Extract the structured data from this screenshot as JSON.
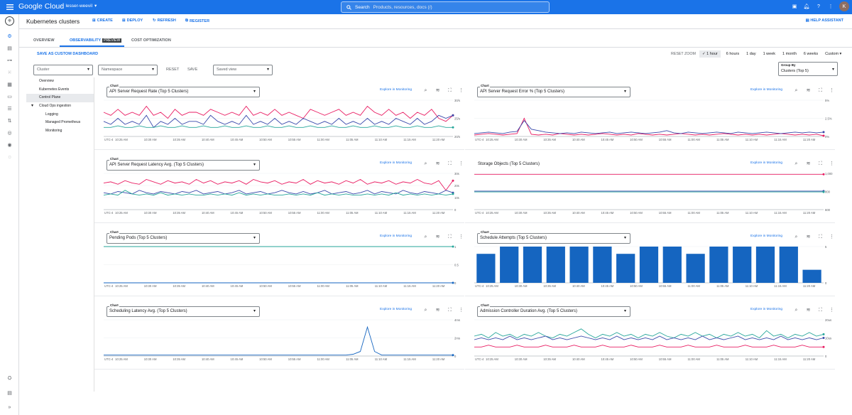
{
  "topbar": {
    "logo": "Google Cloud",
    "project": "lesser-weevil",
    "search_label": "Search",
    "search_placeholder": "Products, resources, docs (/)",
    "avatar": "K"
  },
  "header": {
    "title": "Kubernetes clusters",
    "create": "CREATE",
    "deploy": "DEPLOY",
    "refresh": "REFRESH",
    "register": "REGISTER",
    "help": "HELP ASSISTANT"
  },
  "tabs": {
    "overview": "OVERVIEW",
    "observability": "OBSERVABILITY",
    "preview": "PREVIEW",
    "cost": "COST OPTIMIZATION"
  },
  "toolbar": {
    "save_dashboard": "SAVE AS CUSTOM DASHBOARD",
    "reset_zoom": "RESET ZOOM",
    "times": [
      "1 hour",
      "6 hours",
      "1 day",
      "1 week",
      "1 month",
      "6 weeks",
      "Custom"
    ],
    "selected_time": "1 hour"
  },
  "filters": {
    "cluster": "Cluster",
    "namespace": "Namespace",
    "reset": "RESET",
    "save": "SAVE",
    "saved_view": "Saved view",
    "group_by_label": "Group By",
    "group_by_value": "Clusters (Top 5)"
  },
  "tree": [
    {
      "label": "Overview",
      "level": 1
    },
    {
      "label": "Kubernetes Events",
      "level": 1
    },
    {
      "label": "Control Plane",
      "level": 1,
      "selected": true
    },
    {
      "label": "Cloud Ops ingestion",
      "level": 1,
      "expanded": true
    },
    {
      "label": "Logging",
      "level": 2
    },
    {
      "label": "Managed Prometheus",
      "level": 2
    },
    {
      "label": "Monitoring",
      "level": 2
    }
  ],
  "common": {
    "chart_label": "Chart",
    "explore": "Explore in Monitoring",
    "tz": "UTC-4"
  },
  "x_ticks": [
    "10:25 AM",
    "10:30 AM",
    "10:35 AM",
    "10:40 AM",
    "10:45 AM",
    "10:50 AM",
    "10:55 AM",
    "11:00 AM",
    "11:05 AM",
    "11:10 AM",
    "11:15 AM",
    "11:20 AM"
  ],
  "colors": {
    "primary": "#1a73e8",
    "blue": "#1565c0",
    "teal": "#26a69a",
    "pink": "#e91e63",
    "navy": "#3949ab",
    "bar": "#1565c0"
  },
  "chart_data": [
    {
      "type": "line",
      "title": "API Server Request Rate (Top 5 Clusters)",
      "dropdown": true,
      "y_ticks": [
        "30/s",
        "25/s",
        "20/s"
      ],
      "ylim": [
        19,
        31
      ],
      "series": [
        {
          "color": "#e91e63",
          "values": [
            27,
            26,
            28,
            26,
            27,
            26,
            29,
            26,
            27,
            25,
            28,
            26,
            27,
            27,
            26,
            28,
            27,
            26,
            27,
            26,
            29,
            26,
            27,
            26,
            28,
            26,
            27,
            26,
            25,
            28,
            27,
            26,
            27,
            28,
            26,
            27,
            26,
            29,
            27,
            26,
            28,
            26,
            27,
            25,
            27,
            26,
            28,
            25,
            24,
            26
          ]
        },
        {
          "color": "#3949ab",
          "values": [
            24,
            23,
            25,
            23,
            24,
            23,
            26,
            22,
            24,
            23,
            25,
            23,
            24,
            24,
            23,
            26,
            24,
            23,
            24,
            23,
            26,
            23,
            24,
            23,
            25,
            23,
            24,
            23,
            25,
            24,
            23,
            24,
            23,
            25,
            23,
            24,
            23,
            25,
            23,
            24,
            23,
            25,
            24,
            23,
            25,
            23,
            24,
            26,
            25,
            26
          ]
        },
        {
          "color": "#26a69a",
          "values": [
            22,
            22,
            22.5,
            22,
            22,
            22.5,
            22,
            22,
            22.5,
            22,
            22,
            22.5,
            22,
            22,
            22.5,
            22,
            22,
            22.5,
            22,
            22,
            22.5,
            22,
            22,
            22.5,
            22,
            22,
            22.5,
            22,
            22,
            22.5,
            22,
            22,
            22.5,
            22,
            22,
            22.5,
            22,
            22,
            22.5,
            22,
            22,
            22.5,
            22,
            22,
            22.5,
            22,
            22,
            22.5,
            22,
            22
          ]
        }
      ]
    },
    {
      "type": "line",
      "title": "API Server Request Error % (Top 5 Clusters)",
      "dropdown": true,
      "y_ticks": [
        "5%",
        "2.5%",
        "0%"
      ],
      "ylim": [
        0,
        5
      ],
      "series": [
        {
          "color": "#e91e63",
          "values": [
            0.2,
            0.3,
            0.4,
            0.3,
            0.2,
            0.3,
            0.4,
            2.5,
            0.3,
            0.2,
            0.3,
            0.2,
            0.4,
            0.3,
            0.2,
            0.3,
            0.2,
            0.3,
            0.4,
            0.3,
            0.2,
            0.3,
            0.2,
            0.4,
            0.3,
            0.2,
            0.3,
            0.2,
            0.3,
            0.4,
            0.3,
            0.2,
            0.3,
            0.2,
            0.3,
            0.4,
            0.3,
            0.2,
            0.3,
            0.2,
            0.3,
            0.2,
            0.3,
            0.4,
            0.3,
            0.2,
            0.3,
            0.2,
            0.3,
            0.1
          ]
        },
        {
          "color": "#3949ab",
          "values": [
            0.4,
            0.5,
            0.6,
            0.5,
            0.4,
            0.6,
            0.7,
            2.2,
            1.0,
            0.8,
            0.6,
            0.5,
            0.4,
            0.5,
            0.4,
            0.6,
            0.5,
            0.4,
            0.5,
            0.6,
            0.4,
            0.5,
            0.6,
            0.5,
            0.4,
            0.5,
            0.6,
            0.8,
            0.5,
            0.4,
            0.6,
            0.5,
            0.4,
            0.5,
            0.6,
            0.5,
            0.4,
            0.6,
            0.5,
            0.4,
            0.5,
            0.6,
            0.5,
            0.4,
            0.5,
            0.6,
            0.5,
            0.6,
            0.5,
            0.6
          ]
        }
      ]
    },
    {
      "type": "line",
      "title": "API Server Request Latency Avg. (Top 5 Clusters)",
      "dropdown": true,
      "y_ticks": [
        "30s",
        "20s",
        "10s",
        "0"
      ],
      "ylim": [
        0,
        30
      ],
      "series": [
        {
          "color": "#e91e63",
          "values": [
            22,
            23,
            21,
            24,
            22,
            21,
            25,
            23,
            21,
            24,
            22,
            23,
            21,
            25,
            22,
            24,
            21,
            23,
            22,
            24,
            21,
            25,
            23,
            22,
            24,
            21,
            23,
            22,
            25,
            21,
            24,
            22,
            23,
            21,
            24,
            22,
            25,
            21,
            23,
            22,
            24,
            21,
            23,
            22,
            25,
            22,
            21,
            24,
            16,
            24
          ]
        },
        {
          "color": "#3949ab",
          "values": [
            14,
            13,
            15,
            14,
            13,
            16,
            14,
            13,
            15,
            14,
            13,
            15,
            14,
            16,
            13,
            14,
            15,
            13,
            14,
            16,
            13,
            14,
            15,
            13,
            14,
            16,
            14,
            13,
            15,
            13,
            14,
            16,
            13,
            14,
            15,
            13,
            14,
            16,
            13,
            15,
            14,
            13,
            16,
            14,
            13,
            15,
            14,
            13,
            16,
            14
          ]
        },
        {
          "color": "#26a69a",
          "values": [
            12,
            13,
            12,
            16,
            13,
            12,
            13,
            12,
            14,
            12,
            13,
            12,
            13,
            12,
            12,
            13,
            12,
            13,
            12,
            14,
            12,
            13,
            12,
            13,
            12,
            12,
            13,
            12,
            13,
            12,
            14,
            12,
            13,
            12,
            13,
            12,
            12,
            13,
            12,
            13,
            12,
            14,
            12,
            13,
            12,
            13,
            12,
            13,
            12,
            13
          ]
        }
      ]
    },
    {
      "type": "line",
      "title": "Storage Objects (Top 5 Clusters)",
      "dropdown": false,
      "y_ticks": [
        "1,000",
        "800",
        "600"
      ],
      "ylim": [
        600,
        1000
      ],
      "series": [
        {
          "color": "#e91e63",
          "values": [
            990,
            990,
            990,
            990,
            990,
            990,
            990,
            990,
            990,
            990,
            990,
            990,
            990,
            990,
            990,
            990,
            990,
            990,
            990,
            990,
            990,
            990,
            990,
            990,
            990
          ]
        },
        {
          "color": "#3949ab",
          "values": [
            805,
            805,
            805,
            805,
            805,
            805,
            805,
            805,
            805,
            805,
            805,
            805,
            805,
            805,
            805,
            805,
            805,
            805,
            805,
            805,
            805,
            805,
            805,
            805,
            805
          ]
        },
        {
          "color": "#26a69a",
          "values": [
            795,
            795,
            795,
            795,
            795,
            795,
            795,
            795,
            795,
            795,
            795,
            795,
            795,
            795,
            795,
            795,
            795,
            795,
            795,
            795,
            795,
            795,
            795,
            795,
            795
          ]
        }
      ]
    },
    {
      "type": "line",
      "title": "Pending Pods (Top 5 Clusters)",
      "dropdown": true,
      "y_ticks": [
        "1",
        "0.5",
        "0"
      ],
      "ylim": [
        0,
        1
      ],
      "series": [
        {
          "color": "#26a69a",
          "values": [
            1,
            1,
            1,
            1,
            1,
            1,
            1,
            1,
            1,
            1,
            1,
            1,
            1,
            1,
            1,
            1,
            1,
            1,
            1,
            1
          ]
        },
        {
          "color": "#1565c0",
          "values": [
            0,
            0,
            0,
            0,
            0,
            0,
            0,
            0,
            0,
            0,
            0,
            0,
            0,
            0,
            0,
            0,
            0,
            0,
            0,
            0
          ]
        }
      ]
    },
    {
      "type": "bar",
      "title": "Schedule Attempts (Top 5 Clusters)",
      "dropdown": true,
      "y_ticks": [
        "5",
        "0"
      ],
      "ylim": [
        0,
        5
      ],
      "values": [
        4,
        5,
        5,
        5,
        5,
        5,
        4,
        5,
        5,
        4,
        5,
        5,
        5,
        5,
        1.8
      ]
    },
    {
      "type": "line",
      "title": "Scheduling Latency Avg. (Top 5 Clusters)",
      "dropdown": true,
      "y_ticks": [
        "4ms",
        "2ms",
        "0"
      ],
      "ylim": [
        0,
        4
      ],
      "series": [
        {
          "color": "#1565c0",
          "values": [
            0.1,
            0.1,
            0.1,
            0.1,
            0.1,
            0.1,
            0.1,
            0.1,
            0.1,
            0.1,
            0.1,
            0.1,
            0.1,
            0.1,
            0.1,
            0.1,
            0.1,
            0.1,
            0.1,
            0.1,
            0.1,
            0.1,
            0.1,
            0.1,
            0.1,
            0.1,
            0.1,
            0.1,
            0.1,
            0.1,
            0.1,
            0.1,
            0.1,
            0.1,
            0.1,
            0.2,
            0.5,
            3.2,
            0.5,
            0.1,
            0.1,
            0.1,
            0.1,
            0.1,
            0.1,
            0.1,
            0.1,
            0.1,
            0.1,
            0.1
          ]
        }
      ]
    },
    {
      "type": "line",
      "title": "Admission Controller Duration Avg. (Top 5 Clusters)",
      "dropdown": true,
      "y_ticks": [
        "20us",
        "10us",
        "0"
      ],
      "ylim": [
        0,
        20
      ],
      "series": [
        {
          "color": "#26a69a",
          "values": [
            11,
            12,
            10,
            13,
            11,
            12,
            10,
            12,
            11,
            13,
            11,
            10,
            12,
            11,
            13,
            15,
            12,
            10,
            12,
            11,
            13,
            11,
            12,
            10,
            12,
            11,
            13,
            11,
            10,
            12,
            11,
            13,
            11,
            12,
            10,
            12,
            11,
            13,
            11,
            12,
            10,
            14,
            11,
            12,
            10,
            12,
            11,
            13,
            11,
            12
          ]
        },
        {
          "color": "#3949ab",
          "values": [
            9,
            10,
            9,
            10,
            9,
            11,
            9,
            10,
            9,
            10,
            11,
            9,
            10,
            9,
            10,
            11,
            10,
            9,
            10,
            9,
            11,
            9,
            10,
            9,
            10,
            9,
            11,
            9,
            10,
            9,
            10,
            9,
            11,
            9,
            10,
            9,
            10,
            11,
            9,
            10,
            9,
            10,
            9,
            11,
            9,
            10,
            9,
            10,
            9,
            10
          ]
        },
        {
          "color": "#e91e63",
          "values": [
            5,
            5,
            6,
            5,
            5,
            5,
            6,
            5,
            5,
            5,
            6,
            5,
            5,
            5,
            6,
            5,
            5,
            5,
            6,
            5,
            5,
            5,
            6,
            5,
            5,
            5,
            6,
            5,
            5,
            5,
            6,
            5,
            5,
            5,
            6,
            5,
            5,
            5,
            6,
            5,
            5,
            5,
            6,
            5,
            5,
            5,
            6,
            5,
            5,
            5
          ]
        }
      ]
    }
  ]
}
